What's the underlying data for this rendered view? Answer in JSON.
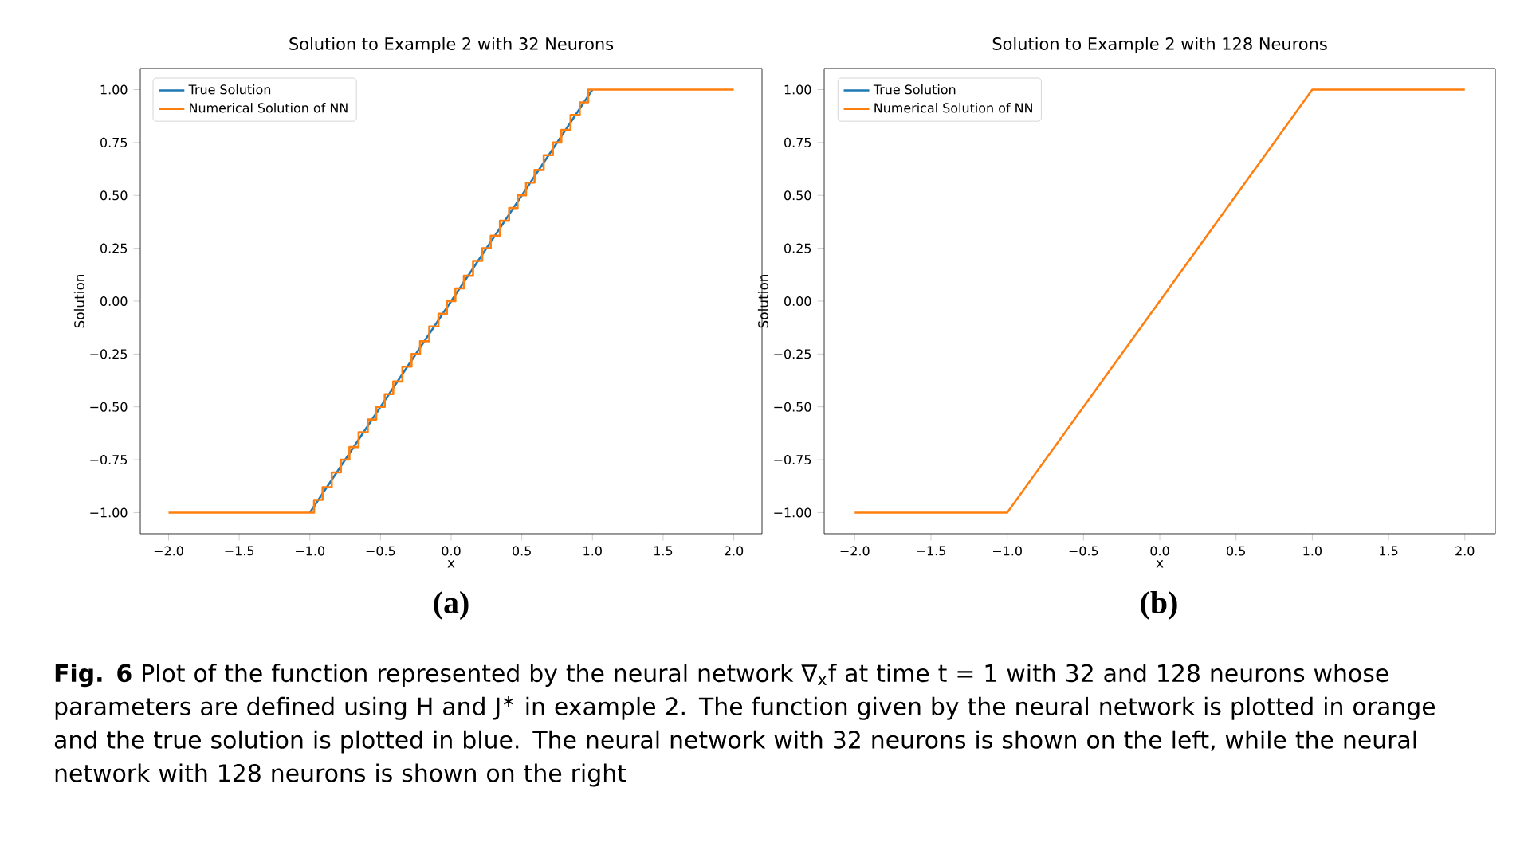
{
  "chart_data": [
    {
      "type": "line",
      "title": "Solution to Example 2 with 32 Neurons",
      "xlabel": "x",
      "ylabel": "Solution",
      "xlim": [
        -2.2,
        2.2
      ],
      "ylim": [
        -1.1,
        1.1
      ],
      "xticks": [
        {
          "value": -2,
          "label": "−2.0"
        },
        {
          "value": -1.5,
          "label": "−1.5"
        },
        {
          "value": -1,
          "label": "−1.0"
        },
        {
          "value": -0.5,
          "label": "−0.5"
        },
        {
          "value": 0,
          "label": "0.0"
        },
        {
          "value": 0.5,
          "label": "0.5"
        },
        {
          "value": 1,
          "label": "1.0"
        },
        {
          "value": 1.5,
          "label": "1.5"
        },
        {
          "value": 2,
          "label": "2.0"
        }
      ],
      "yticks": [
        {
          "value": -1,
          "label": "−1.00"
        },
        {
          "value": -0.75,
          "label": "−0.75"
        },
        {
          "value": -0.5,
          "label": "−0.50"
        },
        {
          "value": -0.25,
          "label": "−0.25"
        },
        {
          "value": 0,
          "label": "0.00"
        },
        {
          "value": 0.25,
          "label": "0.25"
        },
        {
          "value": 0.5,
          "label": "0.50"
        },
        {
          "value": 0.75,
          "label": "0.75"
        },
        {
          "value": 1,
          "label": "1.00"
        }
      ],
      "legend": "top left",
      "series": [
        {
          "name": "True Solution",
          "color": "#1f77b4",
          "x": [
            -1,
            1
          ],
          "values": [
            -1,
            1
          ]
        },
        {
          "name": "Numerical Solution of NN",
          "color": "#ff7f0e",
          "type": "step",
          "x": [
            -2,
            -1,
            -0.94,
            -0.88,
            -0.81,
            -0.75,
            -0.69,
            -0.62,
            -0.56,
            -0.5,
            -0.44,
            -0.38,
            -0.31,
            -0.25,
            -0.19,
            -0.12,
            -0.06,
            0,
            0.06,
            0.12,
            0.19,
            0.25,
            0.31,
            0.38,
            0.44,
            0.5,
            0.56,
            0.62,
            0.69,
            0.75,
            0.81,
            0.88,
            0.94,
            1,
            2
          ],
          "values": [
            -1,
            -1,
            -0.94,
            -0.88,
            -0.81,
            -0.75,
            -0.69,
            -0.62,
            -0.56,
            -0.5,
            -0.44,
            -0.38,
            -0.31,
            -0.25,
            -0.19,
            -0.12,
            -0.06,
            0,
            0.06,
            0.12,
            0.19,
            0.25,
            0.31,
            0.38,
            0.44,
            0.5,
            0.56,
            0.62,
            0.69,
            0.75,
            0.81,
            0.88,
            0.94,
            1,
            1
          ]
        }
      ],
      "annotations": [
        "(a)",
        "**Fig. 6**   Plot of the function represented by the neural network ∇$_{x}$f at time t = 1 with 32 and 128 neurons whose parameters are defined using H and J$^{∗}$ in example 2. The function given by the neural network is plotted in orange and the true solution is plotted in blue. The neural network with 32 neurons is shown on the left, while the neural network with 128 neurons is shown on the right"
      ]
    },
    {
      "type": "line",
      "title": "Solution to Example 2 with 128 Neurons",
      "xlabel": "x",
      "ylabel": "Solution",
      "xlim": [
        -2.2,
        2.2
      ],
      "ylim": [
        -1.1,
        1.1
      ],
      "xticks": [
        {
          "value": -2,
          "label": "−2.0"
        },
        {
          "value": -1.5,
          "label": "−1.5"
        },
        {
          "value": -1,
          "label": "−1.0"
        },
        {
          "value": -0.5,
          "label": "−0.5"
        },
        {
          "value": 0,
          "label": "0.0"
        },
        {
          "value": 0.5,
          "label": "0.5"
        },
        {
          "value": 1,
          "label": "1.0"
        },
        {
          "value": 1.5,
          "label": "1.5"
        },
        {
          "value": 2,
          "label": "2.0"
        }
      ],
      "yticks": [
        {
          "value": -1,
          "label": "−1.00"
        },
        {
          "value": -0.75,
          "label": "−0.75"
        },
        {
          "value": -0.5,
          "label": "−0.50"
        },
        {
          "value": -0.25,
          "label": "−0.25"
        },
        {
          "value": 0,
          "label": "0.00"
        },
        {
          "value": 0.25,
          "label": "0.25"
        },
        {
          "value": 0.5,
          "label": "0.50"
        },
        {
          "value": 0.75,
          "label": "0.75"
        },
        {
          "value": 1,
          "label": "1.00"
        }
      ],
      "legend": "top left",
      "series": [
        {
          "name": "True Solution",
          "color": "#1f77b4"
        },
        {
          "name": "Numerical Solution of NN",
          "color": "#ff7f0e",
          "x": [
            -2,
            -1,
            1,
            2
          ],
          "values": [
            -1,
            -1,
            1,
            1
          ]
        }
      ],
      "annotations": [
        "(b)"
      ]
    }
  ]
}
